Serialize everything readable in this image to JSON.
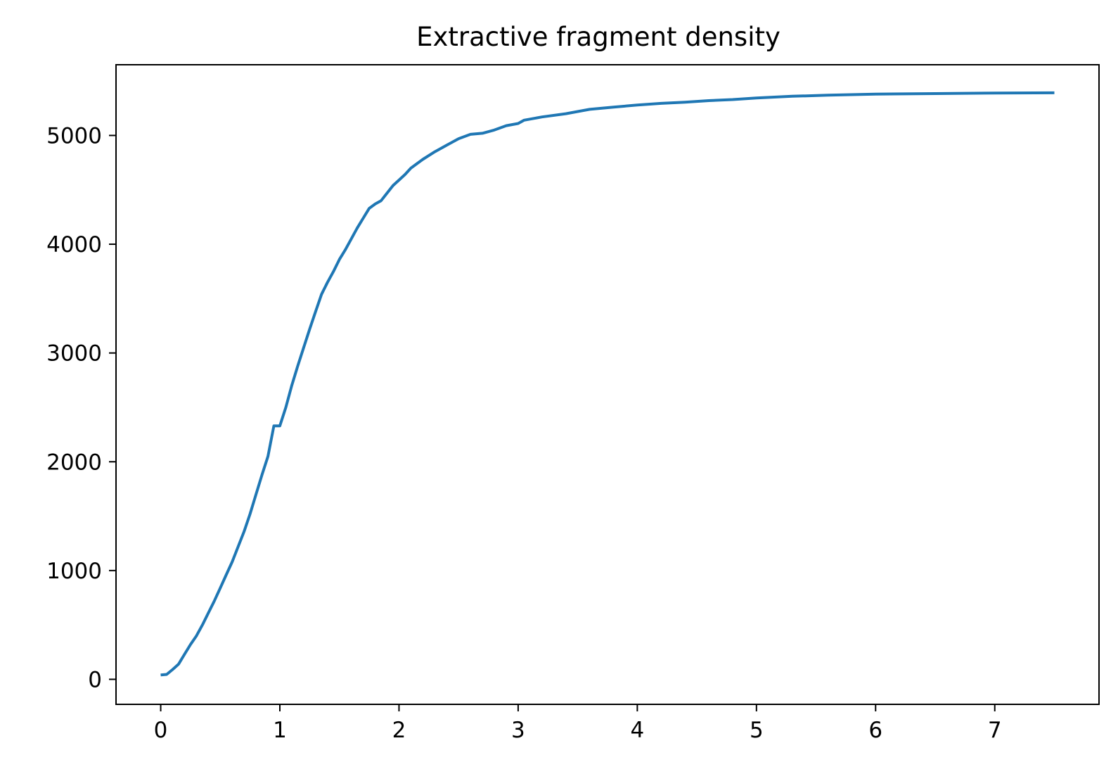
{
  "chart_data": {
    "type": "line",
    "title": "Extractive fragment density",
    "xlabel": "",
    "ylabel": "",
    "xlim": [
      -0.375,
      7.875
    ],
    "ylim": [
      -230,
      5650
    ],
    "xticks": [
      0,
      1,
      2,
      3,
      4,
      5,
      6,
      7
    ],
    "xtick_labels": [
      "0",
      "1",
      "2",
      "3",
      "4",
      "5",
      "6",
      "7"
    ],
    "yticks": [
      0,
      1000,
      2000,
      3000,
      4000,
      5000
    ],
    "ytick_labels": [
      "0",
      "1000",
      "2000",
      "3000",
      "4000",
      "5000"
    ],
    "grid": false,
    "legend": "none",
    "series": [
      {
        "color": "#1f77b4",
        "x": [
          0.0,
          0.05,
          0.1,
          0.15,
          0.2,
          0.25,
          0.3,
          0.35,
          0.4,
          0.45,
          0.5,
          0.55,
          0.6,
          0.65,
          0.7,
          0.75,
          0.8,
          0.85,
          0.9,
          0.95,
          1.0,
          1.05,
          1.1,
          1.15,
          1.2,
          1.25,
          1.3,
          1.35,
          1.4,
          1.45,
          1.5,
          1.55,
          1.6,
          1.65,
          1.7,
          1.75,
          1.8,
          1.85,
          1.9,
          1.95,
          2.0,
          2.05,
          2.1,
          2.2,
          2.3,
          2.4,
          2.5,
          2.6,
          2.7,
          2.8,
          2.9,
          3.0,
          3.05,
          3.2,
          3.4,
          3.5,
          3.6,
          3.8,
          4.0,
          4.2,
          4.4,
          4.6,
          4.8,
          5.0,
          5.3,
          5.6,
          6.0,
          6.5,
          7.0,
          7.5
        ],
        "y": [
          40,
          45,
          90,
          140,
          230,
          320,
          400,
          500,
          610,
          720,
          840,
          960,
          1080,
          1220,
          1360,
          1520,
          1700,
          1880,
          2050,
          2330,
          2330,
          2500,
          2700,
          2880,
          3050,
          3220,
          3380,
          3540,
          3650,
          3750,
          3860,
          3950,
          4050,
          4150,
          4240,
          4330,
          4370,
          4400,
          4470,
          4540,
          4590,
          4640,
          4700,
          4780,
          4850,
          4910,
          4970,
          5010,
          5020,
          5050,
          5090,
          5110,
          5140,
          5170,
          5200,
          5220,
          5240,
          5260,
          5280,
          5295,
          5305,
          5320,
          5330,
          5345,
          5360,
          5370,
          5380,
          5385,
          5390,
          5392
        ]
      }
    ]
  }
}
